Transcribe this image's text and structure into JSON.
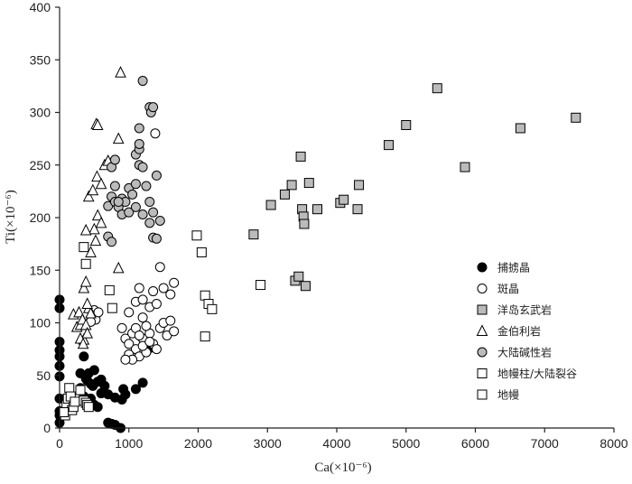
{
  "chart_data": {
    "type": "scatter",
    "xlabel": "Ca(×10⁻⁶)",
    "ylabel": "Ti(×10⁻⁶)",
    "xlim": [
      0,
      8000
    ],
    "ylim": [
      0,
      400
    ],
    "xticks": [
      0,
      1000,
      2000,
      3000,
      4000,
      5000,
      6000,
      7000,
      8000
    ],
    "yticks": [
      0,
      50,
      100,
      150,
      200,
      250,
      300,
      350,
      400
    ],
    "grid": false,
    "legend_position": "right",
    "series": [
      {
        "name": "捕掳晶",
        "marker": "circle",
        "fill": "#000000",
        "stroke": "#000000",
        "points": [
          [
            0,
            122
          ],
          [
            0,
            114
          ],
          [
            0,
            82
          ],
          [
            0,
            74
          ],
          [
            0,
            68
          ],
          [
            0,
            59
          ],
          [
            0,
            49
          ],
          [
            0,
            28
          ],
          [
            0,
            16
          ],
          [
            0,
            12
          ],
          [
            0,
            5
          ],
          [
            300,
            52
          ],
          [
            350,
            68
          ],
          [
            380,
            47
          ],
          [
            400,
            45
          ],
          [
            420,
            52
          ],
          [
            450,
            42
          ],
          [
            480,
            40
          ],
          [
            500,
            55
          ],
          [
            550,
            44
          ],
          [
            600,
            46
          ],
          [
            650,
            40
          ],
          [
            300,
            38
          ],
          [
            350,
            30
          ],
          [
            380,
            27
          ],
          [
            420,
            22
          ],
          [
            450,
            28
          ],
          [
            500,
            22
          ],
          [
            550,
            20
          ],
          [
            600,
            33
          ],
          [
            700,
            32
          ],
          [
            800,
            29
          ],
          [
            900,
            27
          ],
          [
            700,
            5
          ],
          [
            750,
            4
          ],
          [
            800,
            3
          ],
          [
            880,
            0
          ],
          [
            920,
            37
          ],
          [
            950,
            32
          ],
          [
            1100,
            37
          ],
          [
            1200,
            43
          ],
          [
            1250,
            72
          ],
          [
            1300,
            76
          ]
        ]
      },
      {
        "name": "斑晶",
        "marker": "circle",
        "fill": "#ffffff",
        "stroke": "#000000",
        "points": [
          [
            900,
            95
          ],
          [
            950,
            85
          ],
          [
            1000,
            80
          ],
          [
            1050,
            90
          ],
          [
            1100,
            75
          ],
          [
            1150,
            68
          ],
          [
            1200,
            85
          ],
          [
            1250,
            72
          ],
          [
            1300,
            90
          ],
          [
            1350,
            80
          ],
          [
            1400,
            75
          ],
          [
            1450,
            95
          ],
          [
            1500,
            100
          ],
          [
            1550,
            88
          ],
          [
            1600,
            102
          ],
          [
            1650,
            92
          ],
          [
            1000,
            110
          ],
          [
            1100,
            120
          ],
          [
            1200,
            105
          ],
          [
            1300,
            115
          ],
          [
            1350,
            130
          ],
          [
            1400,
            118
          ],
          [
            1450,
            153
          ],
          [
            1500,
            133
          ],
          [
            1600,
            127
          ],
          [
            1650,
            138
          ],
          [
            1000,
            70
          ],
          [
            1050,
            65
          ],
          [
            950,
            65
          ],
          [
            1100,
            95
          ],
          [
            1150,
            88
          ],
          [
            1200,
            78
          ],
          [
            1250,
            97
          ],
          [
            1300,
            82
          ],
          [
            1150,
            133
          ],
          [
            1200,
            122
          ],
          [
            1380,
            280
          ],
          [
            500,
            112
          ],
          [
            520,
            103
          ],
          [
            450,
            101
          ],
          [
            560,
            110
          ]
        ]
      },
      {
        "name": "洋岛玄武岩",
        "marker": "square",
        "fill": "#bbbbbb",
        "stroke": "#000000",
        "points": [
          [
            2800,
            184
          ],
          [
            3050,
            212
          ],
          [
            3250,
            222
          ],
          [
            3350,
            231
          ],
          [
            3480,
            258
          ],
          [
            3500,
            208
          ],
          [
            3520,
            201
          ],
          [
            3530,
            194
          ],
          [
            3600,
            233
          ],
          [
            3720,
            208
          ],
          [
            3400,
            140
          ],
          [
            3450,
            144
          ],
          [
            3550,
            135
          ],
          [
            4050,
            214
          ],
          [
            4100,
            217
          ],
          [
            4300,
            208
          ],
          [
            4320,
            231
          ],
          [
            4750,
            269
          ],
          [
            5000,
            288
          ],
          [
            5450,
            323
          ],
          [
            5850,
            248
          ],
          [
            6650,
            285
          ],
          [
            7450,
            295
          ]
        ]
      },
      {
        "name": "金伯利岩",
        "marker": "triangle",
        "fill": "#ffffff",
        "stroke": "#000000",
        "points": [
          [
            200,
            108
          ],
          [
            250,
            96
          ],
          [
            280,
            110
          ],
          [
            300,
            98
          ],
          [
            330,
            103
          ],
          [
            350,
            84
          ],
          [
            380,
            98
          ],
          [
            400,
            90
          ],
          [
            420,
            114
          ],
          [
            450,
            109
          ],
          [
            350,
            133
          ],
          [
            380,
            139
          ],
          [
            400,
            118
          ],
          [
            450,
            167
          ],
          [
            500,
            189
          ],
          [
            520,
            178
          ],
          [
            550,
            202
          ],
          [
            380,
            188
          ],
          [
            420,
            220
          ],
          [
            480,
            226
          ],
          [
            540,
            239
          ],
          [
            600,
            232
          ],
          [
            650,
            250
          ],
          [
            700,
            254
          ],
          [
            530,
            289
          ],
          [
            550,
            288
          ],
          [
            850,
            275
          ],
          [
            880,
            338
          ],
          [
            850,
            152
          ],
          [
            600,
            195
          ],
          [
            300,
            85
          ],
          [
            340,
            80
          ]
        ]
      },
      {
        "name": "大陆碱性岩",
        "marker": "circle",
        "fill": "#bbbbbb",
        "stroke": "#000000",
        "points": [
          [
            700,
            211
          ],
          [
            750,
            220
          ],
          [
            800,
            215
          ],
          [
            850,
            210
          ],
          [
            900,
            218
          ],
          [
            950,
            215
          ],
          [
            1000,
            228
          ],
          [
            1050,
            222
          ],
          [
            1100,
            232
          ],
          [
            1150,
            250
          ],
          [
            1200,
            248
          ],
          [
            1250,
            230
          ],
          [
            1300,
            215
          ],
          [
            1350,
            205
          ],
          [
            1400,
            240
          ],
          [
            1450,
            197
          ],
          [
            700,
            182
          ],
          [
            750,
            177
          ],
          [
            900,
            203
          ],
          [
            1000,
            205
          ],
          [
            1100,
            210
          ],
          [
            1200,
            203
          ],
          [
            1300,
            195
          ],
          [
            1350,
            181
          ],
          [
            1400,
            180
          ],
          [
            750,
            248
          ],
          [
            800,
            255
          ],
          [
            1100,
            260
          ],
          [
            1150,
            265
          ],
          [
            1150,
            270
          ],
          [
            1150,
            285
          ],
          [
            1200,
            330
          ],
          [
            1300,
            305
          ],
          [
            1320,
            300
          ],
          [
            1350,
            305
          ],
          [
            800,
            230
          ],
          [
            850,
            215
          ]
        ]
      },
      {
        "name": "地幔柱/大陆裂谷",
        "marker": "square",
        "fill": "#ffffff",
        "stroke": "#000000",
        "points": [
          [
            1980,
            183
          ],
          [
            2050,
            167
          ],
          [
            2100,
            126
          ],
          [
            2150,
            118
          ],
          [
            2200,
            113
          ],
          [
            2100,
            87
          ],
          [
            2900,
            136
          ],
          [
            720,
            131
          ],
          [
            760,
            114
          ],
          [
            350,
            172
          ],
          [
            380,
            156
          ]
        ]
      },
      {
        "name": "地幔",
        "marker": "square",
        "fill": "#ffffff",
        "stroke": "#000000",
        "points": [
          [
            80,
            12
          ],
          [
            100,
            22
          ],
          [
            120,
            28
          ],
          [
            140,
            38
          ],
          [
            160,
            30
          ],
          [
            180,
            17
          ],
          [
            200,
            20
          ],
          [
            220,
            25
          ],
          [
            60,
            15
          ],
          [
            300,
            36
          ],
          [
            350,
            26
          ],
          [
            380,
            24
          ],
          [
            400,
            22
          ],
          [
            420,
            20
          ]
        ]
      }
    ]
  }
}
